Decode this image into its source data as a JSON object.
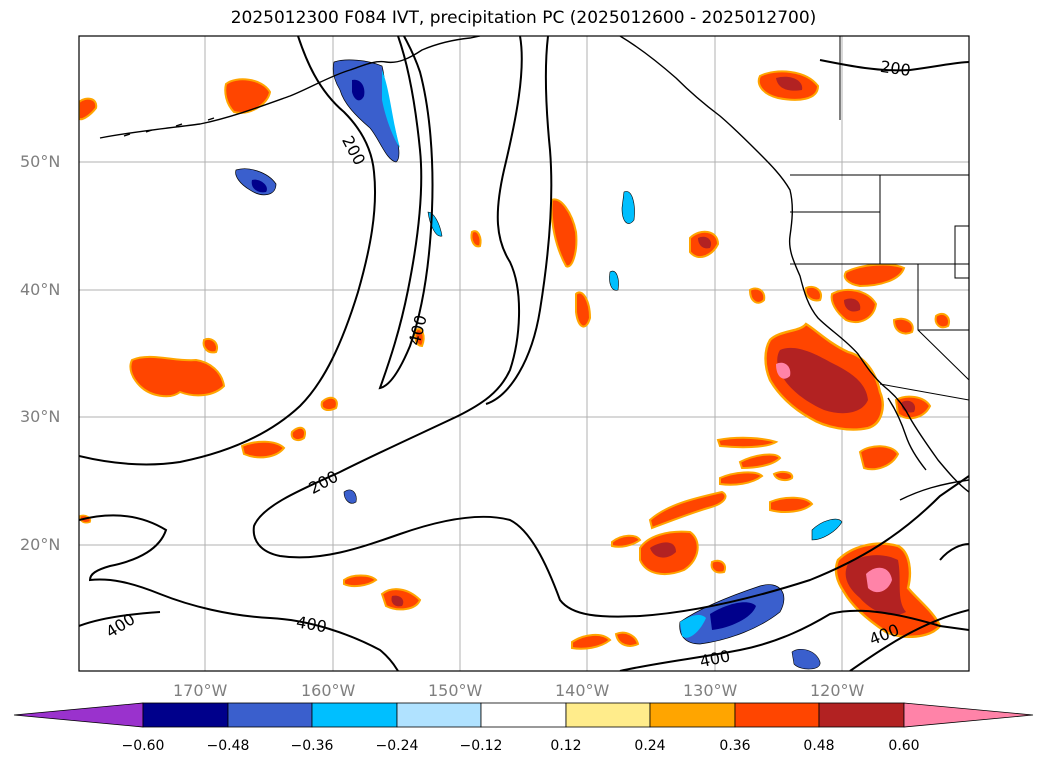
{
  "title": "2025012300 F084 IVT, precipitation PC (2025012600 - 2025012700)",
  "map": {
    "lat_labels": [
      "50°N",
      "40°N",
      "30°N",
      "20°N"
    ],
    "lon_labels": [
      "170°W",
      "160°W",
      "150°W",
      "140°W",
      "130°W",
      "120°W"
    ],
    "contour_labels": [
      "200",
      "200",
      "400",
      "200",
      "400",
      "400",
      "400",
      "400"
    ],
    "colors": {
      "contour": "#000000",
      "grid": "#b0b0b0",
      "axis_label": "#7f7f7f"
    }
  },
  "colorbar": {
    "ticks": [
      "−0.60",
      "−0.48",
      "−0.36",
      "−0.24",
      "−0.12",
      "0.12",
      "0.24",
      "0.36",
      "0.48",
      "0.60"
    ],
    "colors": [
      "#9a32cd",
      "#00008b",
      "#3a5fcd",
      "#00bfff",
      "#b0e2ff",
      "#ffffff",
      "#ffec8b",
      "#ffa500",
      "#ff4500",
      "#b22222",
      "#ff83a8"
    ]
  }
}
